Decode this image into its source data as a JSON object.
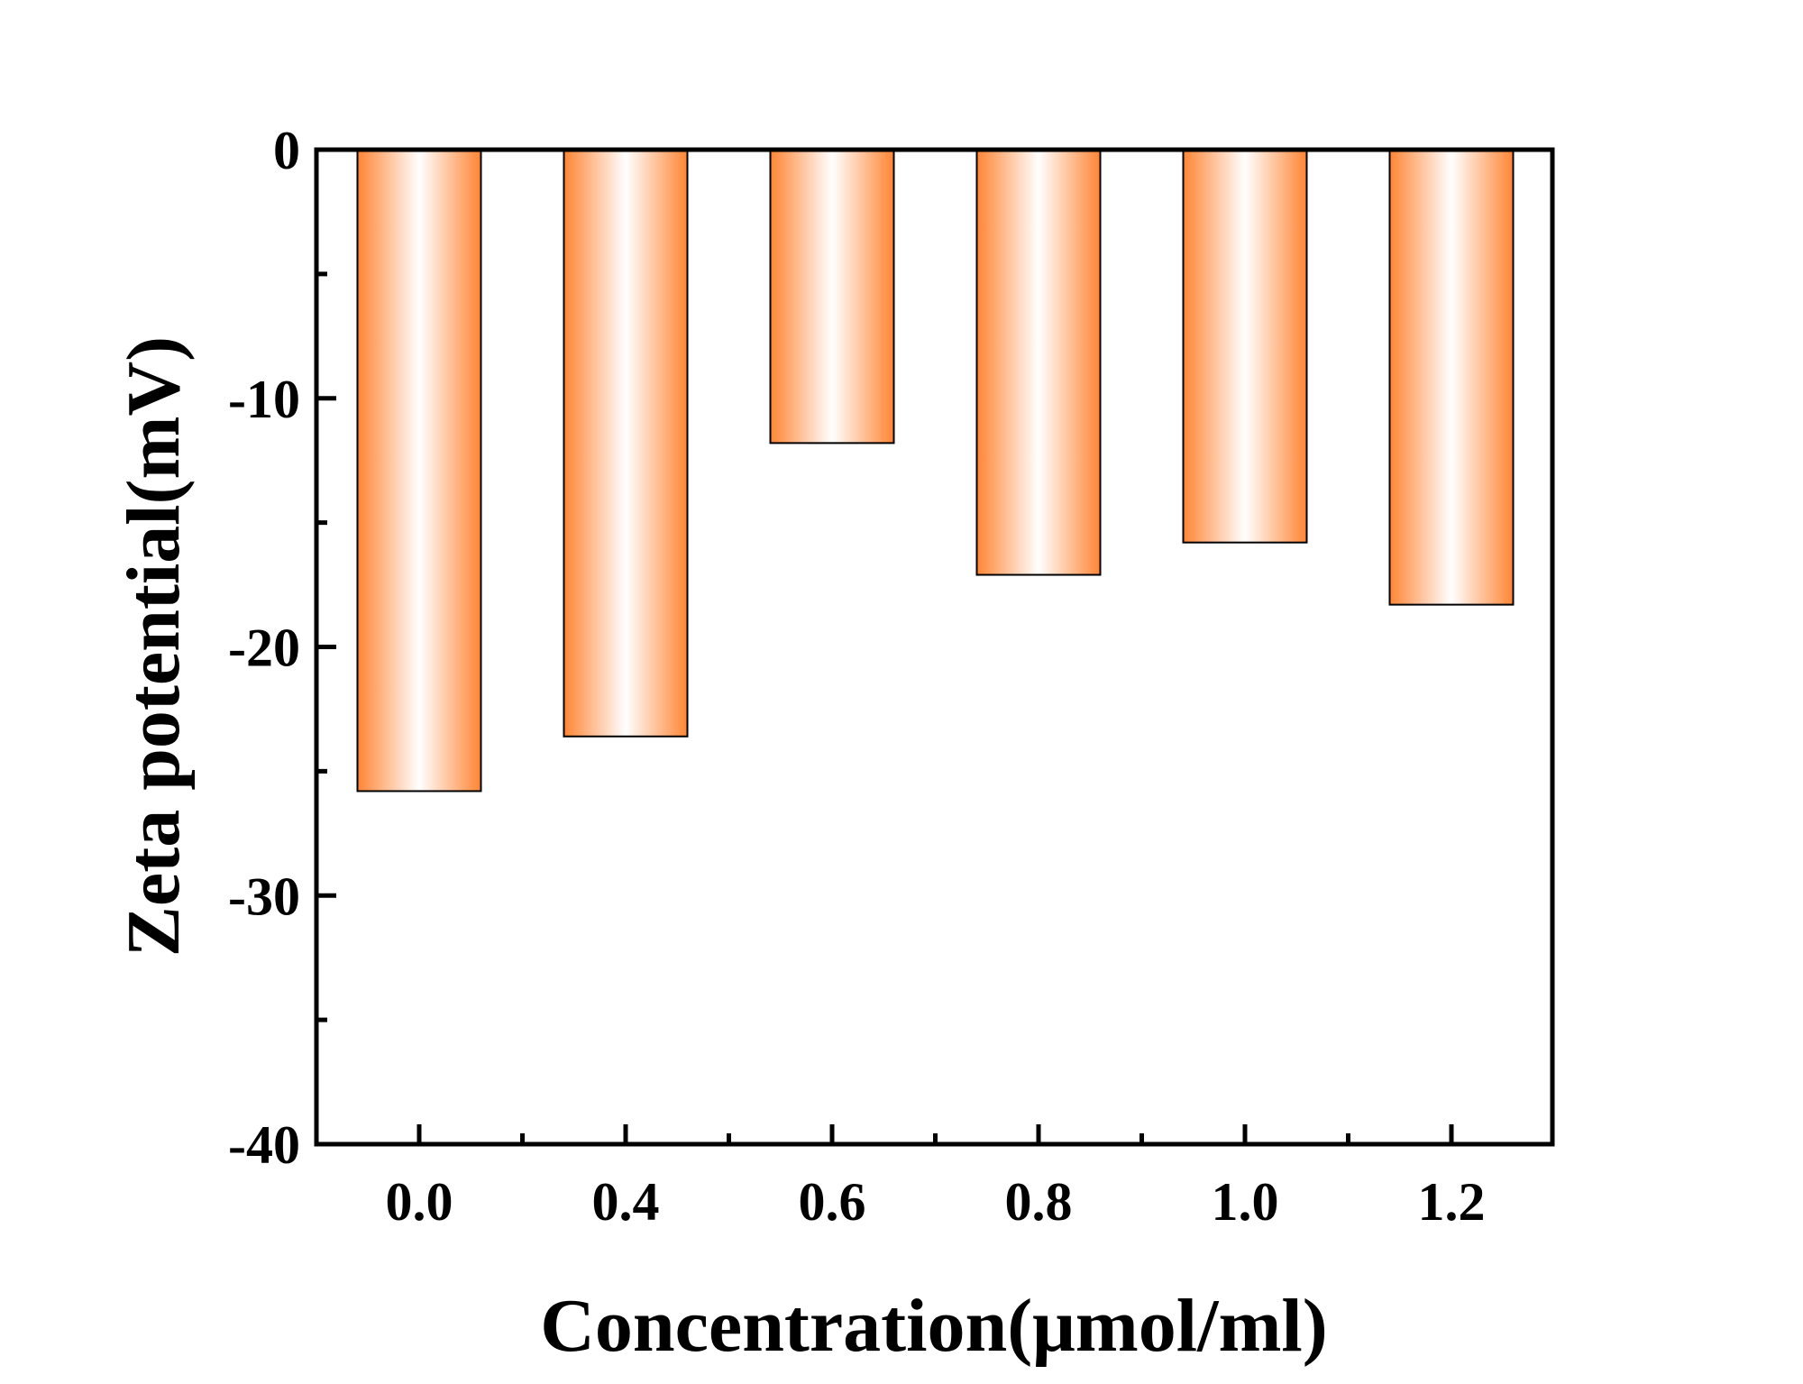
{
  "chart_data": {
    "type": "bar",
    "categories": [
      "0.0",
      "0.4",
      "0.6",
      "0.8",
      "1.0",
      "1.2"
    ],
    "values": [
      -25.8,
      -23.6,
      -11.8,
      -17.1,
      -15.8,
      -18.3
    ],
    "xlabel": "Concentration(μmol/ml)",
    "ylabel": "Zeta potential(mV)",
    "ylim": [
      -40,
      0
    ],
    "yticks": [
      "0",
      "-10",
      "-20",
      "-30",
      "-40"
    ],
    "grid": false,
    "bar_color": "#ff8533",
    "bar_highlight": "#ffffff",
    "bar_edge": "#000000"
  }
}
